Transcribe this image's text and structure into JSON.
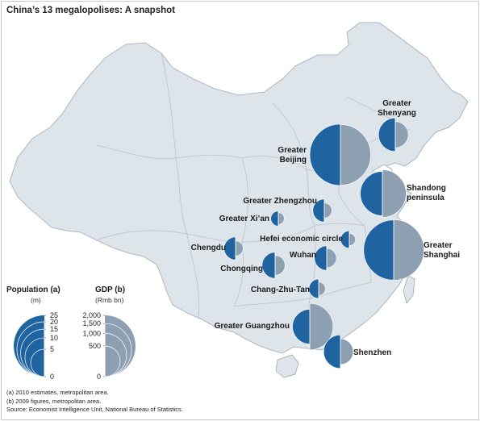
{
  "title": "China’s 13 megalopolises: A snapshot",
  "colors": {
    "population": "#1f64a0",
    "gdp": "#8da0b2",
    "land": "#dde4ea",
    "border": "#b9c4ce",
    "outline": "#9fa9b3",
    "water": "#ffffff"
  },
  "legend": {
    "population": {
      "title": "Population (a)",
      "unit": "(m)",
      "ticks": [
        "25",
        "20",
        "15",
        "10",
        "5",
        "0"
      ],
      "values": [
        25,
        20,
        15,
        10,
        5,
        0
      ]
    },
    "gdp": {
      "title": "GDP (b)",
      "unit": "(Rmb bn)",
      "ticks": [
        "2,000",
        "1,500",
        "1,000",
        "500",
        "0"
      ],
      "values": [
        2000,
        1500,
        1000,
        500,
        0
      ]
    }
  },
  "cities": [
    {
      "label_lines": [
        "Greater",
        "Shenyang"
      ],
      "population_m": 7.5,
      "gdp_rmb_bn": 360
    },
    {
      "label_lines": [
        "Greater",
        "Beijing"
      ],
      "population_m": 25,
      "gdp_rmb_bn": 1950
    },
    {
      "label_lines": [
        "Shandong",
        "peninsula"
      ],
      "population_m": 13,
      "gdp_rmb_bn": 1200
    },
    {
      "label_lines": [
        "Greater Zhengzhou"
      ],
      "population_m": 3.5,
      "gdp_rmb_bn": 120
    },
    {
      "label_lines": [
        "Greater Xi’an"
      ],
      "population_m": 1.5,
      "gdp_rmb_bn": 75
    },
    {
      "label_lines": [
        "Hefei economic circle"
      ],
      "population_m": 2,
      "gdp_rmb_bn": 80
    },
    {
      "label_lines": [
        "Greater",
        "Shanghai"
      ],
      "population_m": 24,
      "gdp_rmb_bn": 1950
    },
    {
      "label_lines": [
        "Chengdu"
      ],
      "population_m": 3.5,
      "gdp_rmb_bn": 120
    },
    {
      "label_lines": [
        "Wuhan"
      ],
      "population_m": 4,
      "gdp_rmb_bn": 200
    },
    {
      "label_lines": [
        "Chongqing"
      ],
      "population_m": 4.5,
      "gdp_rmb_bn": 210
    },
    {
      "label_lines": [
        "Chang-Zhu-Tan"
      ],
      "population_m": 2.5,
      "gdp_rmb_bn": 95
    },
    {
      "label_lines": [
        "Greater Guangzhou"
      ],
      "population_m": 8,
      "gdp_rmb_bn": 1150
    },
    {
      "label_lines": [
        "Shenzhen"
      ],
      "population_m": 7.5,
      "gdp_rmb_bn": 350
    }
  ],
  "notes": [
    "(a) 2010 estimates, metropolitan area.",
    "(b) 2009 figures, metropolitan area.",
    "Source: Economist Intelligence Unit, National Bureau of Statistics."
  ]
}
